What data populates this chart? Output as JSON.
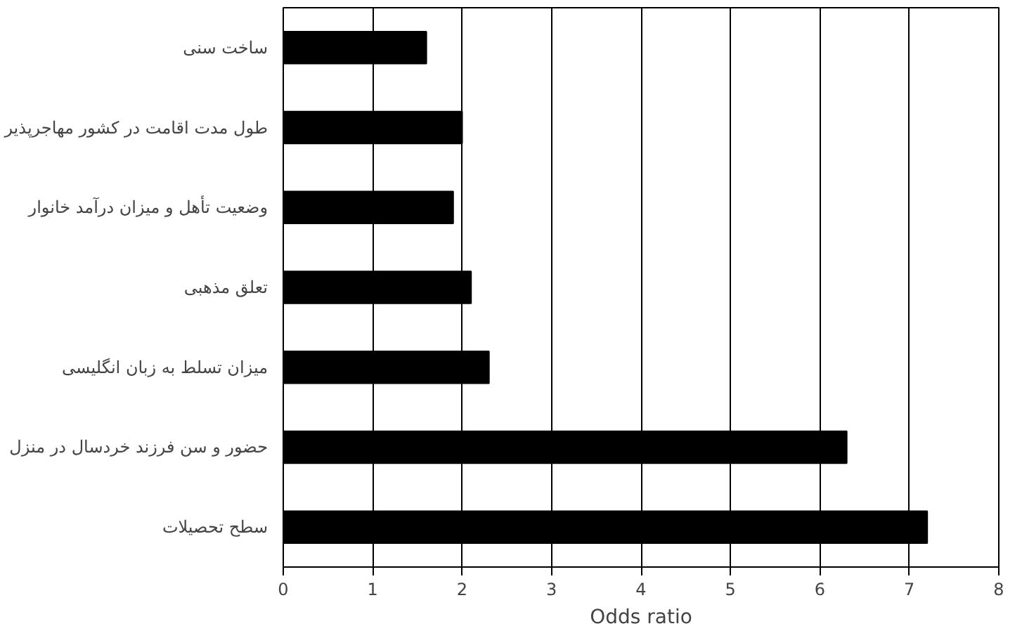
{
  "chart_data": {
    "type": "bar",
    "orientation": "horizontal",
    "xlabel": "Odds ratio",
    "categories": [
      "ساخت سنی",
      "طول مدت اقامت در کشور مهاجرپذیر",
      "وضعیت تأهل و میزان درآمد خانوار",
      "تعلق مذهبی",
      "میزان تسلط به زبان انگلیسی",
      "حضور و سن فرزند خردسال در منزل",
      "سطح تحصیلات"
    ],
    "values": [
      1.6,
      2.0,
      1.9,
      2.1,
      2.3,
      6.3,
      7.2
    ],
    "color": "#000000",
    "xlim": [
      0,
      8
    ],
    "xticks": [
      0,
      1,
      2,
      3,
      4,
      5,
      6,
      7,
      8
    ],
    "grid": "x"
  }
}
